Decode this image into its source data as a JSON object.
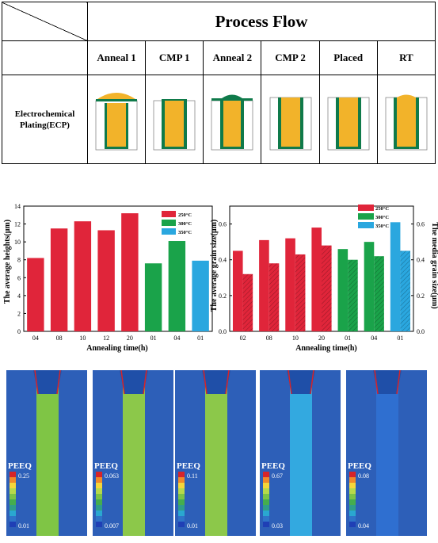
{
  "process_flow": {
    "title": "Process Flow",
    "steps": [
      "Anneal 1",
      "CMP 1",
      "Anneal 2",
      "CMP 2",
      "Placed",
      "RT"
    ],
    "row_label_line1": "Electrochemical",
    "row_label_line2": "Plating(ECP)"
  },
  "chart_data": [
    {
      "type": "bar",
      "categories": [
        "04",
        "08",
        "10",
        "12",
        "20",
        "01",
        "04",
        "01"
      ],
      "series": [
        {
          "name": "250°C",
          "color": "#e0253a",
          "values": [
            8.2,
            11.5,
            12.3,
            11.3,
            13.2,
            null,
            null,
            null
          ]
        },
        {
          "name": "300°C",
          "color": "#1aa34a",
          "values": [
            null,
            null,
            null,
            null,
            null,
            7.6,
            10.1,
            null
          ]
        },
        {
          "name": "350°C",
          "color": "#2aa7df",
          "values": [
            null,
            null,
            null,
            null,
            null,
            null,
            null,
            7.9
          ]
        }
      ],
      "ylabel": "The average heights(μm)",
      "xlabel": "Annealing time(h)",
      "ylim": [
        0,
        14
      ],
      "yticks": [
        0,
        2,
        4,
        6,
        8,
        10,
        12,
        14
      ],
      "legend": "top-right"
    },
    {
      "type": "bar",
      "categories": [
        "02",
        "08",
        "10",
        "20",
        "01",
        "04",
        "01"
      ],
      "series": [
        {
          "name": "250°C",
          "color": "#e0253a",
          "average": [
            0.45,
            0.51,
            0.52,
            0.58,
            null,
            null,
            null
          ],
          "median": [
            0.32,
            0.38,
            0.43,
            0.48,
            null,
            null,
            null
          ]
        },
        {
          "name": "300°C",
          "color": "#1aa34a",
          "average": [
            null,
            null,
            null,
            null,
            0.46,
            0.5,
            null
          ],
          "median": [
            null,
            null,
            null,
            null,
            0.4,
            0.42,
            null
          ]
        },
        {
          "name": "350°C",
          "color": "#2aa7df",
          "average": [
            null,
            null,
            null,
            null,
            null,
            null,
            0.61
          ],
          "median": [
            null,
            null,
            null,
            null,
            null,
            null,
            0.45
          ]
        }
      ],
      "ylabel": "The average grain size(μm)",
      "y2label": "The media grain size(μm)",
      "xlabel": "Annealing time(h)",
      "ylim": [
        0,
        0.7
      ],
      "yticks": [
        0.0,
        0.2,
        0.4,
        0.6
      ],
      "legend": "top-right"
    }
  ],
  "simulations": [
    {
      "label": "PEEQ",
      "max": "0.25",
      "min": "0.01",
      "fill": "#7fc545"
    },
    {
      "label": "PEEQ",
      "max": "0.063",
      "min": "0.007",
      "fill": "#8cc84a"
    },
    {
      "label": "PEEQ",
      "max": "0.11",
      "min": "0.01",
      "fill": "#8cc84a"
    },
    {
      "label": "PEEQ",
      "max": "0.67",
      "min": "0.03",
      "fill": "#33a9e0"
    },
    {
      "label": "PEEQ",
      "max": "0.08",
      "min": "0.04",
      "fill": "#2f6fd0"
    }
  ]
}
